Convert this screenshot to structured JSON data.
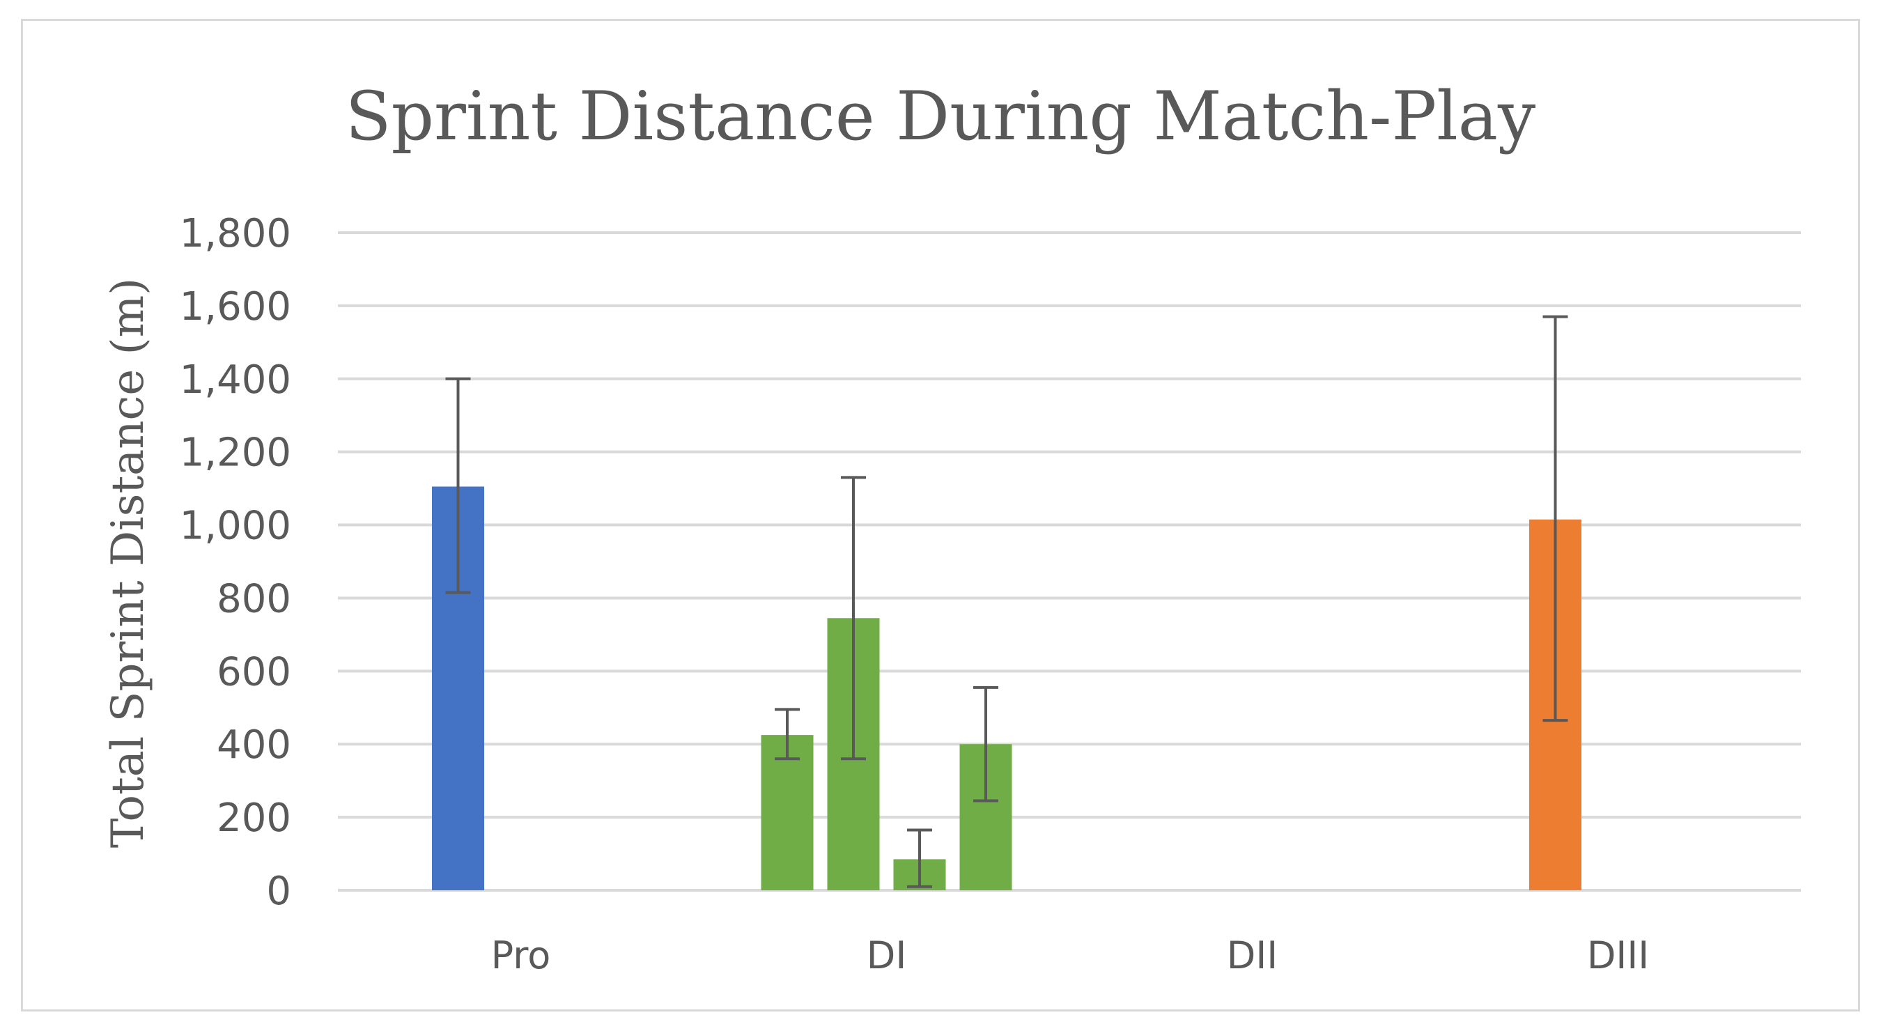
{
  "chart_data": {
    "type": "bar",
    "title": "Sprint Distance During Match-Play",
    "xlabel": "",
    "ylabel": "Total Sprint Distance (m)",
    "ylim": [
      0,
      1800
    ],
    "yticks": [
      0,
      200,
      400,
      600,
      800,
      1000,
      1200,
      1400,
      1600,
      1800
    ],
    "ytick_labels": [
      "0",
      "200",
      "400",
      "600",
      "800",
      "1,000",
      "1,200",
      "1,400",
      "1,600",
      "1,800"
    ],
    "categories": [
      "Pro",
      "DI",
      "DII",
      "DIII"
    ],
    "grid": true,
    "legend": "none",
    "bars": [
      {
        "category": "Pro",
        "value": 1105,
        "error_low": 815,
        "error_high": 1400,
        "color": "#4472c4"
      },
      {
        "category": "DI",
        "value": 425,
        "error_low": 360,
        "error_high": 495,
        "color": "#70ad47"
      },
      {
        "category": "DI",
        "value": 745,
        "error_low": 360,
        "error_high": 1130,
        "color": "#70ad47"
      },
      {
        "category": "DI",
        "value": 85,
        "error_low": 10,
        "error_high": 165,
        "color": "#70ad47"
      },
      {
        "category": "DI",
        "value": 400,
        "error_low": 245,
        "error_high": 555,
        "color": "#70ad47"
      },
      {
        "category": "DIII",
        "value": 1015,
        "error_low": 465,
        "error_high": 1570,
        "color": "#ed7d31"
      }
    ]
  }
}
